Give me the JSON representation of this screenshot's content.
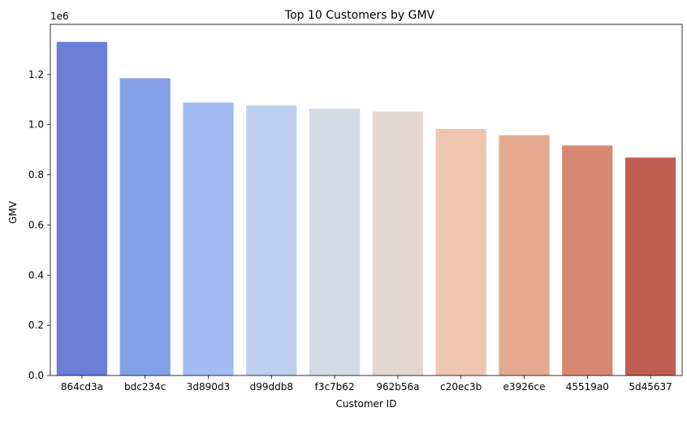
{
  "chart_data": {
    "type": "bar",
    "title": "Top 10 Customers by GMV",
    "xlabel": "Customer ID",
    "ylabel": "GMV",
    "y_scale_label": "1e6",
    "categories": [
      "864cd3a",
      "bdc234c",
      "3d890d3",
      "d99ddb8",
      "f3c7b62",
      "962b56a",
      "c20ec3b",
      "e3926ce",
      "45519a0",
      "5d45637"
    ],
    "values": [
      1330000,
      1185000,
      1088000,
      1076000,
      1064000,
      1052000,
      983000,
      958000,
      917000,
      869000
    ],
    "colors": [
      "#6a7fd5",
      "#84a0e6",
      "#a2bbf3",
      "#bdd0f0",
      "#d5dbe5",
      "#e3d8d0",
      "#eec6b0",
      "#e5a98f",
      "#d88772",
      "#c05e54"
    ],
    "ylim": [
      0,
      1400000
    ],
    "yticks": [
      0,
      200000,
      400000,
      600000,
      800000,
      1000000,
      1200000
    ],
    "ytick_labels": [
      "0.0",
      "0.2",
      "0.4",
      "0.6",
      "0.8",
      "1.0",
      "1.2"
    ],
    "grid": false,
    "legend": false
  }
}
